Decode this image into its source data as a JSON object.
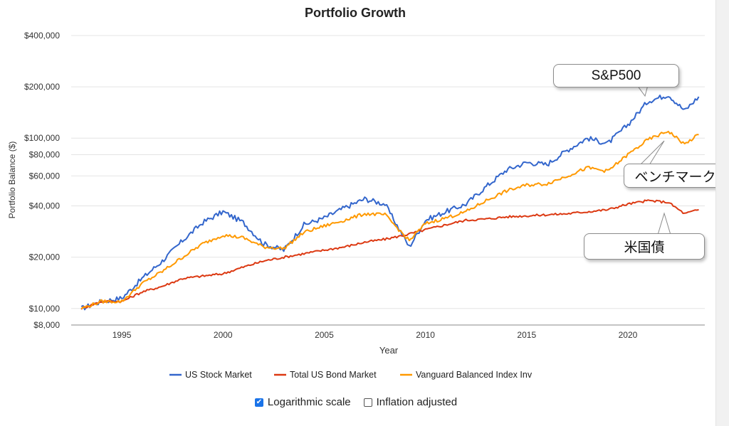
{
  "chart_data": {
    "type": "line",
    "title": "Portfolio Growth",
    "xlabel": "Year",
    "ylabel": "Portfolio Balance ($)",
    "y_scale": "log",
    "ylim": [
      8000,
      400000
    ],
    "xlim": [
      1992.5,
      2023.8
    ],
    "y_ticks": [
      {
        "v": 400000,
        "label": "$400,000"
      },
      {
        "v": 200000,
        "label": "$200,000"
      },
      {
        "v": 100000,
        "label": "$100,000"
      },
      {
        "v": 80000,
        "label": "$80,000"
      },
      {
        "v": 60000,
        "label": "$60,000"
      },
      {
        "v": 40000,
        "label": "$40,000"
      },
      {
        "v": 20000,
        "label": "$20,000"
      },
      {
        "v": 10000,
        "label": "$10,000"
      },
      {
        "v": 8000,
        "label": "$8,000"
      }
    ],
    "x_ticks": [
      {
        "v": 1995,
        "label": "1995"
      },
      {
        "v": 2000,
        "label": "2000"
      },
      {
        "v": 2005,
        "label": "2005"
      },
      {
        "v": 2010,
        "label": "2010"
      },
      {
        "v": 2015,
        "label": "2015"
      },
      {
        "v": 2020,
        "label": "2020"
      }
    ],
    "grid": true,
    "legend": "bottom",
    "series": [
      {
        "name": "US Stock Market",
        "color": "#3366cc",
        "points": [
          [
            1993,
            10000
          ],
          [
            1994,
            11000
          ],
          [
            1995,
            11500
          ],
          [
            1996,
            15000
          ],
          [
            1997,
            19000
          ],
          [
            1998,
            25000
          ],
          [
            1999,
            32000
          ],
          [
            2000,
            37000
          ],
          [
            2001,
            32000
          ],
          [
            2002,
            24000
          ],
          [
            2003,
            22000
          ],
          [
            2004,
            31000
          ],
          [
            2005,
            34000
          ],
          [
            2006,
            39000
          ],
          [
            2007,
            44000
          ],
          [
            2008,
            41000
          ],
          [
            2009.2,
            23000
          ],
          [
            2010,
            33000
          ],
          [
            2011,
            37000
          ],
          [
            2012,
            41000
          ],
          [
            2013,
            52000
          ],
          [
            2014,
            65000
          ],
          [
            2015,
            72000
          ],
          [
            2016,
            70000
          ],
          [
            2017,
            85000
          ],
          [
            2018,
            100000
          ],
          [
            2019,
            93000
          ],
          [
            2020,
            120000
          ],
          [
            2021,
            165000
          ],
          [
            2022,
            180000
          ],
          [
            2022.8,
            145000
          ],
          [
            2023.5,
            175000
          ]
        ]
      },
      {
        "name": "Total US Bond Market",
        "color": "#dc3912",
        "points": [
          [
            1993,
            10000
          ],
          [
            1994,
            11000
          ],
          [
            1995,
            11000
          ],
          [
            1996,
            12500
          ],
          [
            1997,
            13500
          ],
          [
            1998,
            15000
          ],
          [
            1999,
            15500
          ],
          [
            2000,
            16000
          ],
          [
            2001,
            17500
          ],
          [
            2002,
            19000
          ],
          [
            2003,
            20000
          ],
          [
            2004,
            21000
          ],
          [
            2005,
            22000
          ],
          [
            2006,
            23000
          ],
          [
            2007,
            24500
          ],
          [
            2008,
            25500
          ],
          [
            2009,
            27000
          ],
          [
            2010,
            29000
          ],
          [
            2011,
            31000
          ],
          [
            2012,
            33000
          ],
          [
            2013,
            33500
          ],
          [
            2014,
            34500
          ],
          [
            2015,
            35000
          ],
          [
            2016,
            35500
          ],
          [
            2017,
            36000
          ],
          [
            2018,
            37000
          ],
          [
            2019,
            38000
          ],
          [
            2020,
            41000
          ],
          [
            2021,
            43000
          ],
          [
            2022,
            42000
          ],
          [
            2022.8,
            36000
          ],
          [
            2023.5,
            38000
          ]
        ]
      },
      {
        "name": "Vanguard Balanced Index Inv",
        "color": "#ff9900",
        "points": [
          [
            1993,
            10000
          ],
          [
            1994,
            11000
          ],
          [
            1995,
            11000
          ],
          [
            1996,
            14000
          ],
          [
            1997,
            16500
          ],
          [
            1998,
            20000
          ],
          [
            1999,
            24000
          ],
          [
            2000,
            27000
          ],
          [
            2001,
            26000
          ],
          [
            2002,
            23000
          ],
          [
            2003,
            22500
          ],
          [
            2004,
            28000
          ],
          [
            2005,
            30500
          ],
          [
            2006,
            33000
          ],
          [
            2007,
            36000
          ],
          [
            2008,
            35500
          ],
          [
            2009.2,
            25000
          ],
          [
            2010,
            31500
          ],
          [
            2011,
            34000
          ],
          [
            2012,
            37000
          ],
          [
            2013,
            43000
          ],
          [
            2014,
            49000
          ],
          [
            2015,
            53000
          ],
          [
            2016,
            54000
          ],
          [
            2017,
            60000
          ],
          [
            2018,
            67000
          ],
          [
            2019,
            64000
          ],
          [
            2020,
            80000
          ],
          [
            2021,
            98000
          ],
          [
            2022,
            110000
          ],
          [
            2022.8,
            92000
          ],
          [
            2023.5,
            105000
          ]
        ]
      }
    ],
    "annotations": [
      {
        "text": "S&P500"
      },
      {
        "text": "ベンチマーク"
      },
      {
        "text": "米国債"
      }
    ]
  },
  "controls": {
    "log_label": "Logarithmic scale",
    "log_checked": true,
    "inflation_label": "Inflation adjusted",
    "inflation_checked": false
  }
}
